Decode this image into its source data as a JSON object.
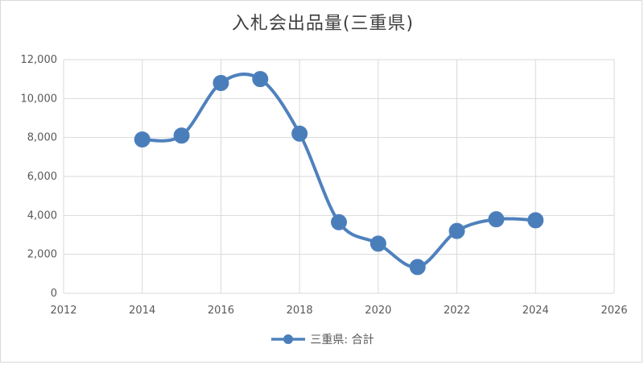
{
  "chart_data": {
    "type": "line",
    "title": "入札会出品量(三重県)",
    "xlabel": "",
    "ylabel": "",
    "x": [
      2014,
      2015,
      2016,
      2017,
      2018,
      2019,
      2020,
      2021,
      2022,
      2023,
      2024
    ],
    "series": [
      {
        "name": "三重県: 合計",
        "values": [
          7900,
          8100,
          10800,
          11000,
          8200,
          3650,
          2550,
          1350,
          3200,
          3800,
          3750
        ]
      }
    ],
    "xlim": [
      2012,
      2026
    ],
    "ylim": [
      0,
      12000
    ],
    "x_ticks": [
      2012,
      2014,
      2016,
      2018,
      2020,
      2022,
      2024,
      2026
    ],
    "y_ticks": [
      0,
      2000,
      4000,
      6000,
      8000,
      10000,
      12000
    ],
    "y_tick_labels": [
      "0",
      "2,000",
      "4,000",
      "6,000",
      "8,000",
      "10,000",
      "12,000"
    ],
    "smoothed": true,
    "grid": true,
    "legend_position": "bottom",
    "series_color": "#4f81bd",
    "marker_color": "#4a7ebb",
    "grid_color": "#d9d9d9"
  }
}
